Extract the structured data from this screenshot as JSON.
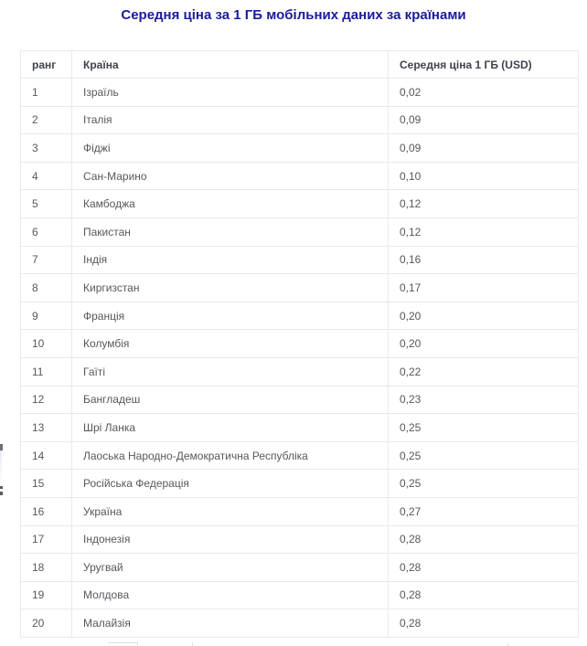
{
  "chart_data": {
    "type": "table",
    "title": "Середня ціна за 1 ГБ мобільних даних за країнами",
    "columns": [
      "ранг",
      "Країна",
      "Середня ціна 1 ГБ (USD)"
    ],
    "rows": [
      {
        "rank": "1",
        "country": "Ізраїль",
        "price": "0,02"
      },
      {
        "rank": "2",
        "country": "Італія",
        "price": "0,09"
      },
      {
        "rank": "3",
        "country": "Фіджі",
        "price": "0,09"
      },
      {
        "rank": "4",
        "country": "Сан-Марино",
        "price": "0,10"
      },
      {
        "rank": "5",
        "country": "Камбоджа",
        "price": "0,12"
      },
      {
        "rank": "6",
        "country": "Пакистан",
        "price": "0,12"
      },
      {
        "rank": "7",
        "country": "Індія",
        "price": "0,16"
      },
      {
        "rank": "8",
        "country": "Киргизстан",
        "price": "0,17"
      },
      {
        "rank": "9",
        "country": "Франція",
        "price": "0,20"
      },
      {
        "rank": "10",
        "country": "Колумбія",
        "price": "0,20"
      },
      {
        "rank": "11",
        "country": "Гаїті",
        "price": "0,22"
      },
      {
        "rank": "12",
        "country": "Бангладеш",
        "price": "0,23"
      },
      {
        "rank": "13",
        "country": "Шрі Ланка",
        "price": "0,25"
      },
      {
        "rank": "14",
        "country": "Лаоська Народно-Демократична Республіка",
        "price": "0,25"
      },
      {
        "rank": "15",
        "country": "Російська Федерація",
        "price": "0,25"
      },
      {
        "rank": "16",
        "country": "Україна",
        "price": "0,27"
      },
      {
        "rank": "17",
        "country": "Індонезія",
        "price": "0,28"
      },
      {
        "rank": "18",
        "country": "Уругвай",
        "price": "0,28"
      },
      {
        "rank": "19",
        "country": "Молдова",
        "price": "0,28"
      },
      {
        "rank": "20",
        "country": "Малайзія",
        "price": "0,28"
      }
    ]
  },
  "colors": {
    "title_text": "#1b1b9a",
    "header_text": "#40434b",
    "body_text": "#55585c",
    "table_border": "#e9e9e9"
  }
}
